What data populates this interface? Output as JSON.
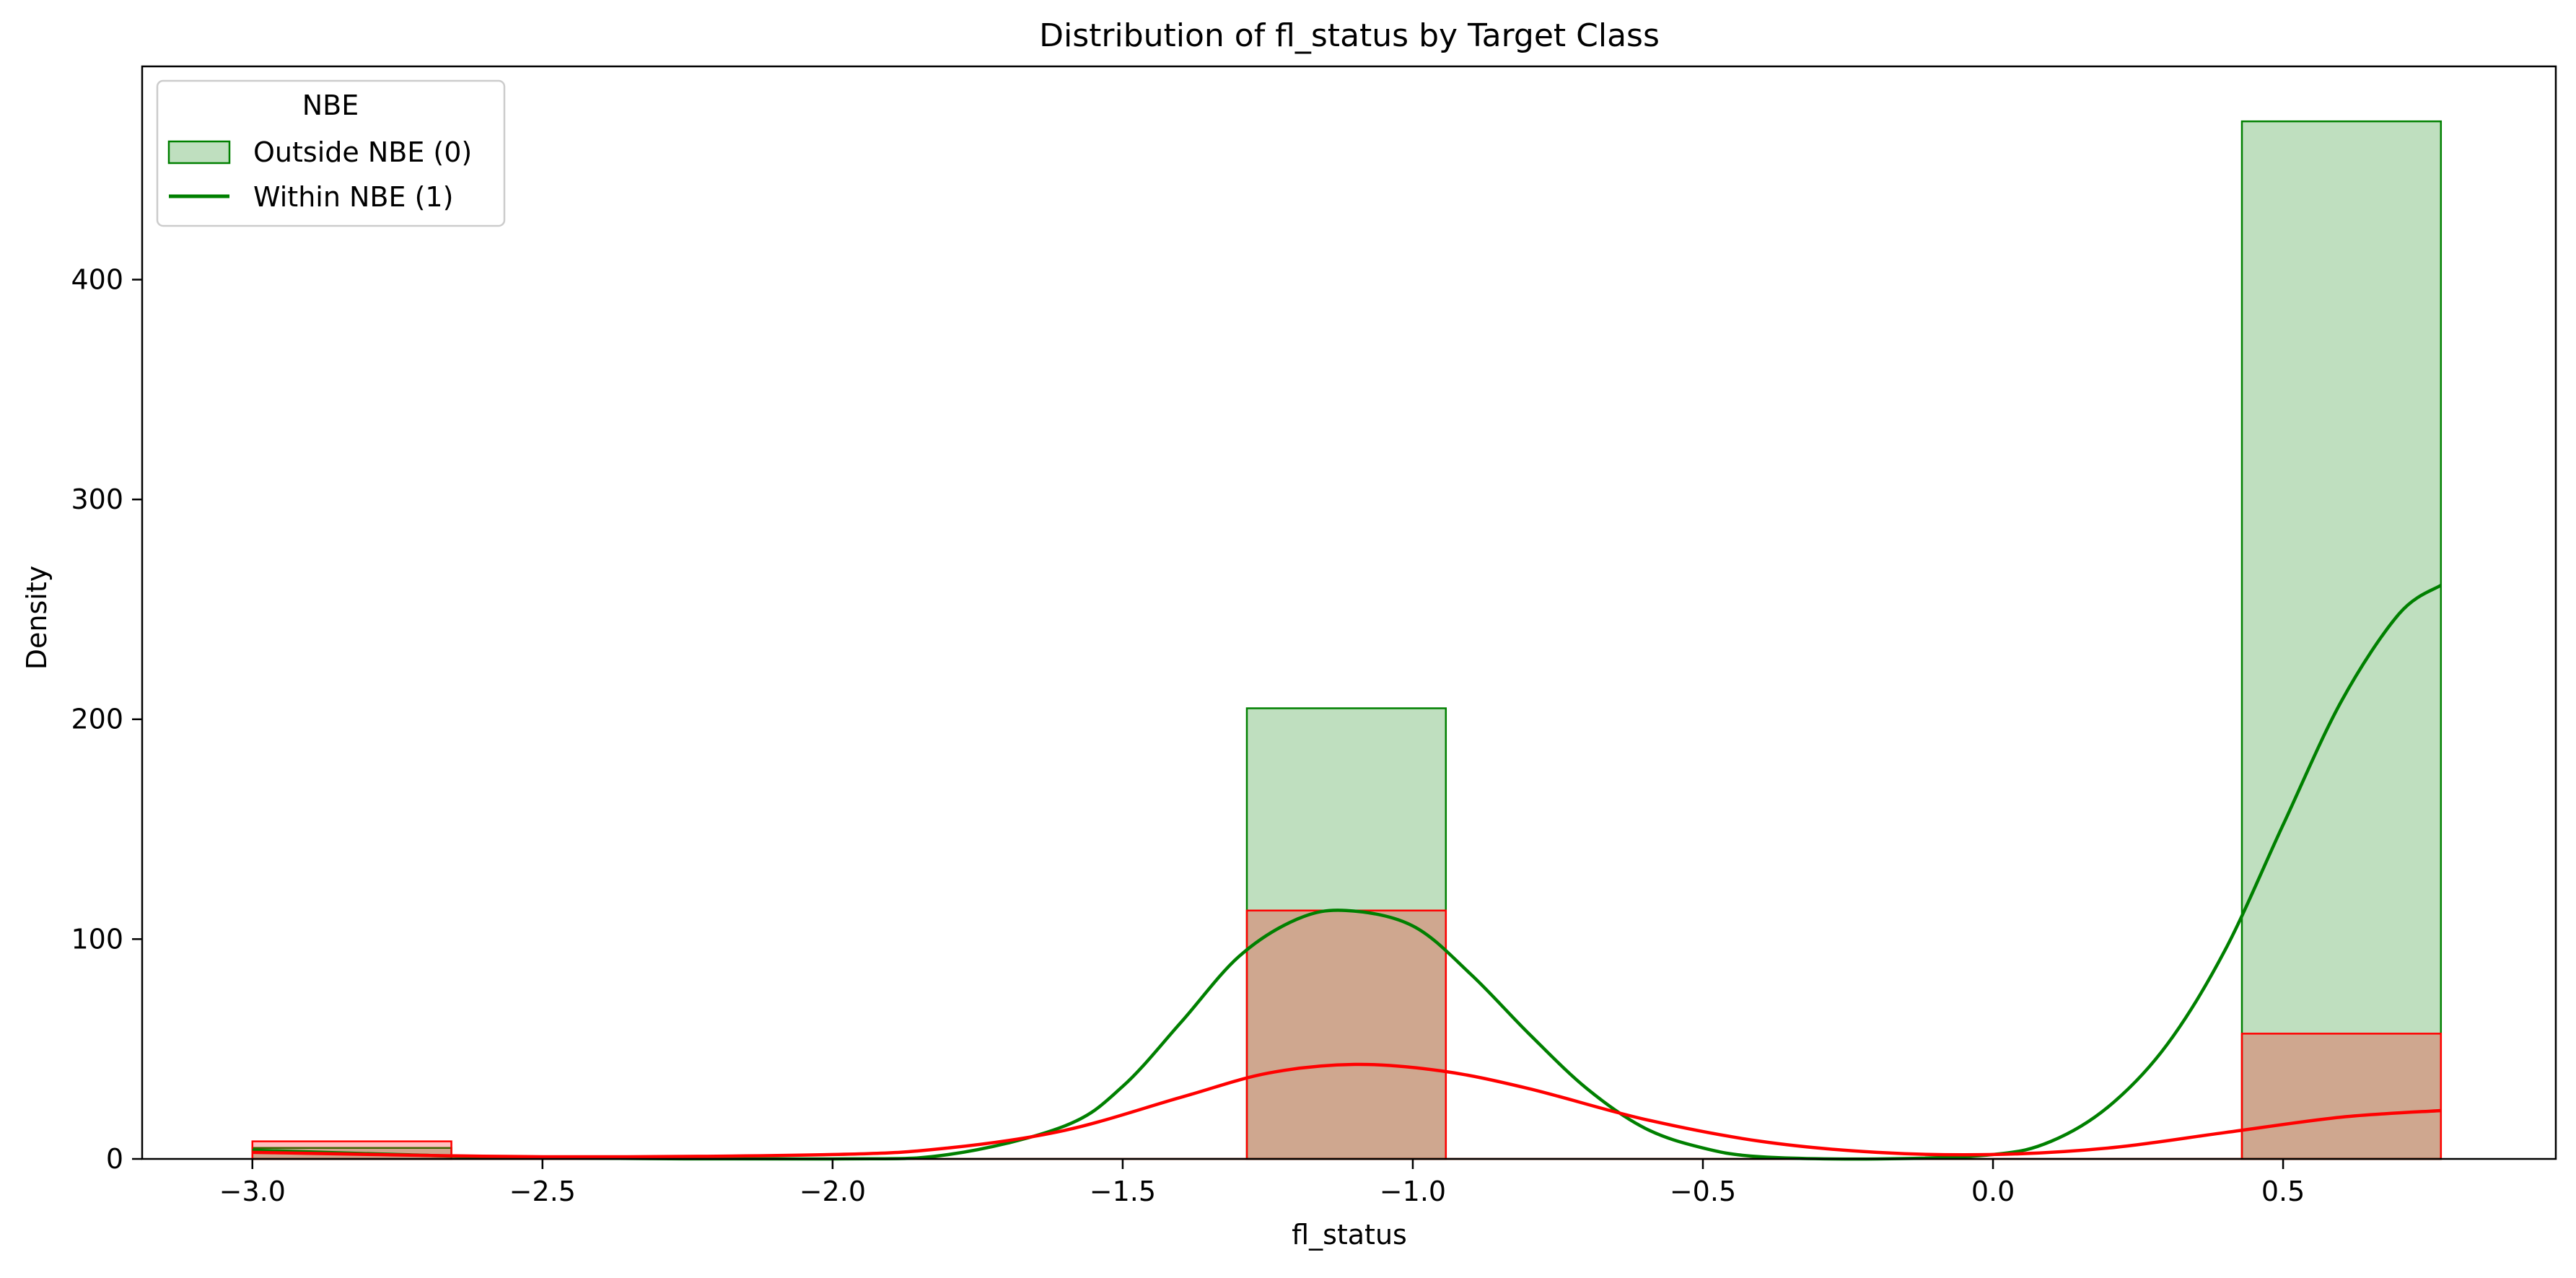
{
  "chart_data": {
    "type": "histogram",
    "title": "Distribution of fl_status by Target Class",
    "xlabel": "fl_status",
    "ylabel": "Density",
    "xlim": [
      -3.19,
      0.97
    ],
    "ylim": [
      0,
      497
    ],
    "x_ticks": [
      {
        "value": -3.0,
        "label": "−3.0"
      },
      {
        "value": -2.5,
        "label": "−2.5"
      },
      {
        "value": -2.0,
        "label": "−2.0"
      },
      {
        "value": -1.5,
        "label": "−1.5"
      },
      {
        "value": -1.0,
        "label": "−1.0"
      },
      {
        "value": -0.5,
        "label": "−0.5"
      },
      {
        "value": 0.0,
        "label": "0.0"
      },
      {
        "value": 0.5,
        "label": "0.5"
      }
    ],
    "y_ticks": [
      {
        "value": 0,
        "label": "0"
      },
      {
        "value": 100,
        "label": "100"
      },
      {
        "value": 200,
        "label": "200"
      },
      {
        "value": 300,
        "label": "300"
      },
      {
        "value": 400,
        "label": "400"
      }
    ],
    "grid": false,
    "legend": {
      "title": "NBE",
      "position": "upper-left",
      "entries": [
        {
          "label": "Outside NBE (0)",
          "marker": "patch",
          "color": "#008000",
          "fill": "rgba(0,128,0,0.25)"
        },
        {
          "label": "Within NBE (1)",
          "marker": "line",
          "color": "#008000"
        }
      ]
    },
    "series": [
      {
        "key": "outside",
        "color": "#008000",
        "fill": "rgba(0,128,0,0.25)",
        "bins": [
          {
            "x0": -3.0,
            "x1": -2.657,
            "value": 5
          },
          {
            "x0": -1.286,
            "x1": -0.943,
            "value": 205
          },
          {
            "x0": 0.429,
            "x1": 0.772,
            "value": 472
          }
        ],
        "kde": [
          [
            -3.0,
            4
          ],
          [
            -2.75,
            2
          ],
          [
            -2.5,
            0.5
          ],
          [
            -2.0,
            0
          ],
          [
            -1.8,
            2
          ],
          [
            -1.6,
            15
          ],
          [
            -1.5,
            33
          ],
          [
            -1.4,
            62
          ],
          [
            -1.3,
            92
          ],
          [
            -1.2,
            109
          ],
          [
            -1.115,
            113
          ],
          [
            -1.0,
            106
          ],
          [
            -0.9,
            84
          ],
          [
            -0.8,
            57
          ],
          [
            -0.7,
            32
          ],
          [
            -0.6,
            14
          ],
          [
            -0.5,
            5
          ],
          [
            -0.4,
            1
          ],
          [
            -0.2,
            0
          ],
          [
            0.0,
            2
          ],
          [
            0.1,
            8
          ],
          [
            0.2,
            24
          ],
          [
            0.3,
            52
          ],
          [
            0.4,
            95
          ],
          [
            0.5,
            152
          ],
          [
            0.6,
            208
          ],
          [
            0.7,
            248
          ],
          [
            0.772,
            261
          ]
        ]
      },
      {
        "key": "within",
        "color": "#ff0000",
        "fill": "rgba(255,0,0,0.25)",
        "bins": [
          {
            "x0": -3.0,
            "x1": -2.657,
            "value": 8
          },
          {
            "x0": -1.286,
            "x1": -0.943,
            "value": 113
          },
          {
            "x0": 0.429,
            "x1": 0.772,
            "value": 57
          }
        ],
        "kde": [
          [
            -3.0,
            3
          ],
          [
            -2.5,
            1
          ],
          [
            -2.0,
            2
          ],
          [
            -1.8,
            5
          ],
          [
            -1.6,
            13
          ],
          [
            -1.4,
            28
          ],
          [
            -1.25,
            39
          ],
          [
            -1.1,
            43
          ],
          [
            -0.95,
            40
          ],
          [
            -0.8,
            32
          ],
          [
            -0.6,
            18
          ],
          [
            -0.4,
            8
          ],
          [
            -0.2,
            3
          ],
          [
            0.0,
            2
          ],
          [
            0.2,
            5
          ],
          [
            0.4,
            12
          ],
          [
            0.6,
            19
          ],
          [
            0.772,
            22
          ]
        ]
      }
    ]
  }
}
